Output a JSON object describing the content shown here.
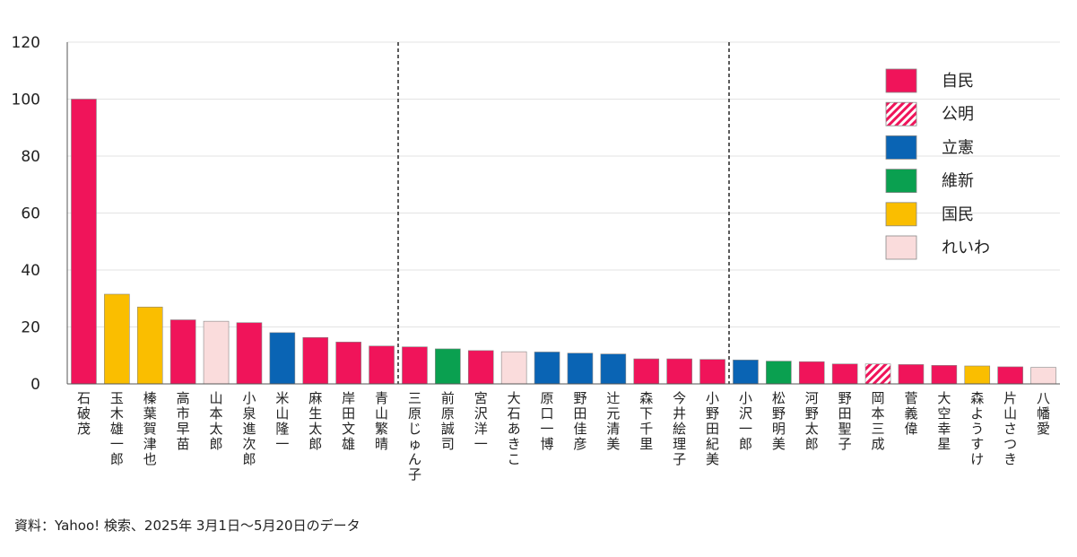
{
  "chart_data": {
    "type": "bar",
    "title": "",
    "xlabel": "",
    "ylabel": "",
    "ylim": [
      0,
      120
    ],
    "yticks": [
      0,
      20,
      40,
      60,
      80,
      100,
      120
    ],
    "grid": true,
    "legend_position": "top-right",
    "categories": [
      "石破茂",
      "玉木雄一郎",
      "榛葉賀津也",
      "高市早苗",
      "山本太郎",
      "小泉進次郎",
      "米山隆一",
      "麻生太郎",
      "岸田文雄",
      "青山繁晴",
      "三原じゅん子",
      "前原誠司",
      "宮沢洋一",
      "大石あきこ",
      "原口一博",
      "野田佳彦",
      "辻元清美",
      "森下千里",
      "今井絵理子",
      "小野田紀美",
      "小沢一郎",
      "松野明美",
      "河野太郎",
      "野田聖子",
      "岡本三成",
      "菅義偉",
      "大空幸星",
      "森ようすけ",
      "片山さつき",
      "八幡愛"
    ],
    "values": [
      100,
      31.5,
      27,
      22.5,
      22,
      21.5,
      18,
      16.3,
      14.7,
      13.3,
      13,
      12.3,
      11.7,
      11.3,
      11.2,
      10.8,
      10.5,
      8.8,
      8.8,
      8.6,
      8.4,
      8,
      7.8,
      7,
      7,
      6.8,
      6.5,
      6.3,
      6,
      5.8
    ],
    "parties": [
      "自民",
      "国民",
      "国民",
      "自民",
      "れいわ",
      "自民",
      "立憲",
      "自民",
      "自民",
      "自民",
      "自民",
      "維新",
      "自民",
      "れいわ",
      "立憲",
      "立憲",
      "立憲",
      "自民",
      "自民",
      "自民",
      "立憲",
      "維新",
      "自民",
      "自民",
      "公明",
      "自民",
      "自民",
      "国民",
      "自民",
      "れいわ"
    ],
    "dividers_after_index": [
      9,
      19
    ],
    "legend": [
      {
        "name": "自民",
        "color": "#f0145a",
        "hatched": false
      },
      {
        "name": "公明",
        "color": "#f0145a",
        "hatched": true
      },
      {
        "name": "立憲",
        "color": "#0a64b4",
        "hatched": false
      },
      {
        "name": "維新",
        "color": "#0aa050",
        "hatched": false
      },
      {
        "name": "国民",
        "color": "#fabe00",
        "hatched": false
      },
      {
        "name": "れいわ",
        "color": "#fadcdc",
        "hatched": false
      }
    ]
  },
  "source": "資料：Yahoo! 検索、2025年 3月1日～5月20日のデータ"
}
